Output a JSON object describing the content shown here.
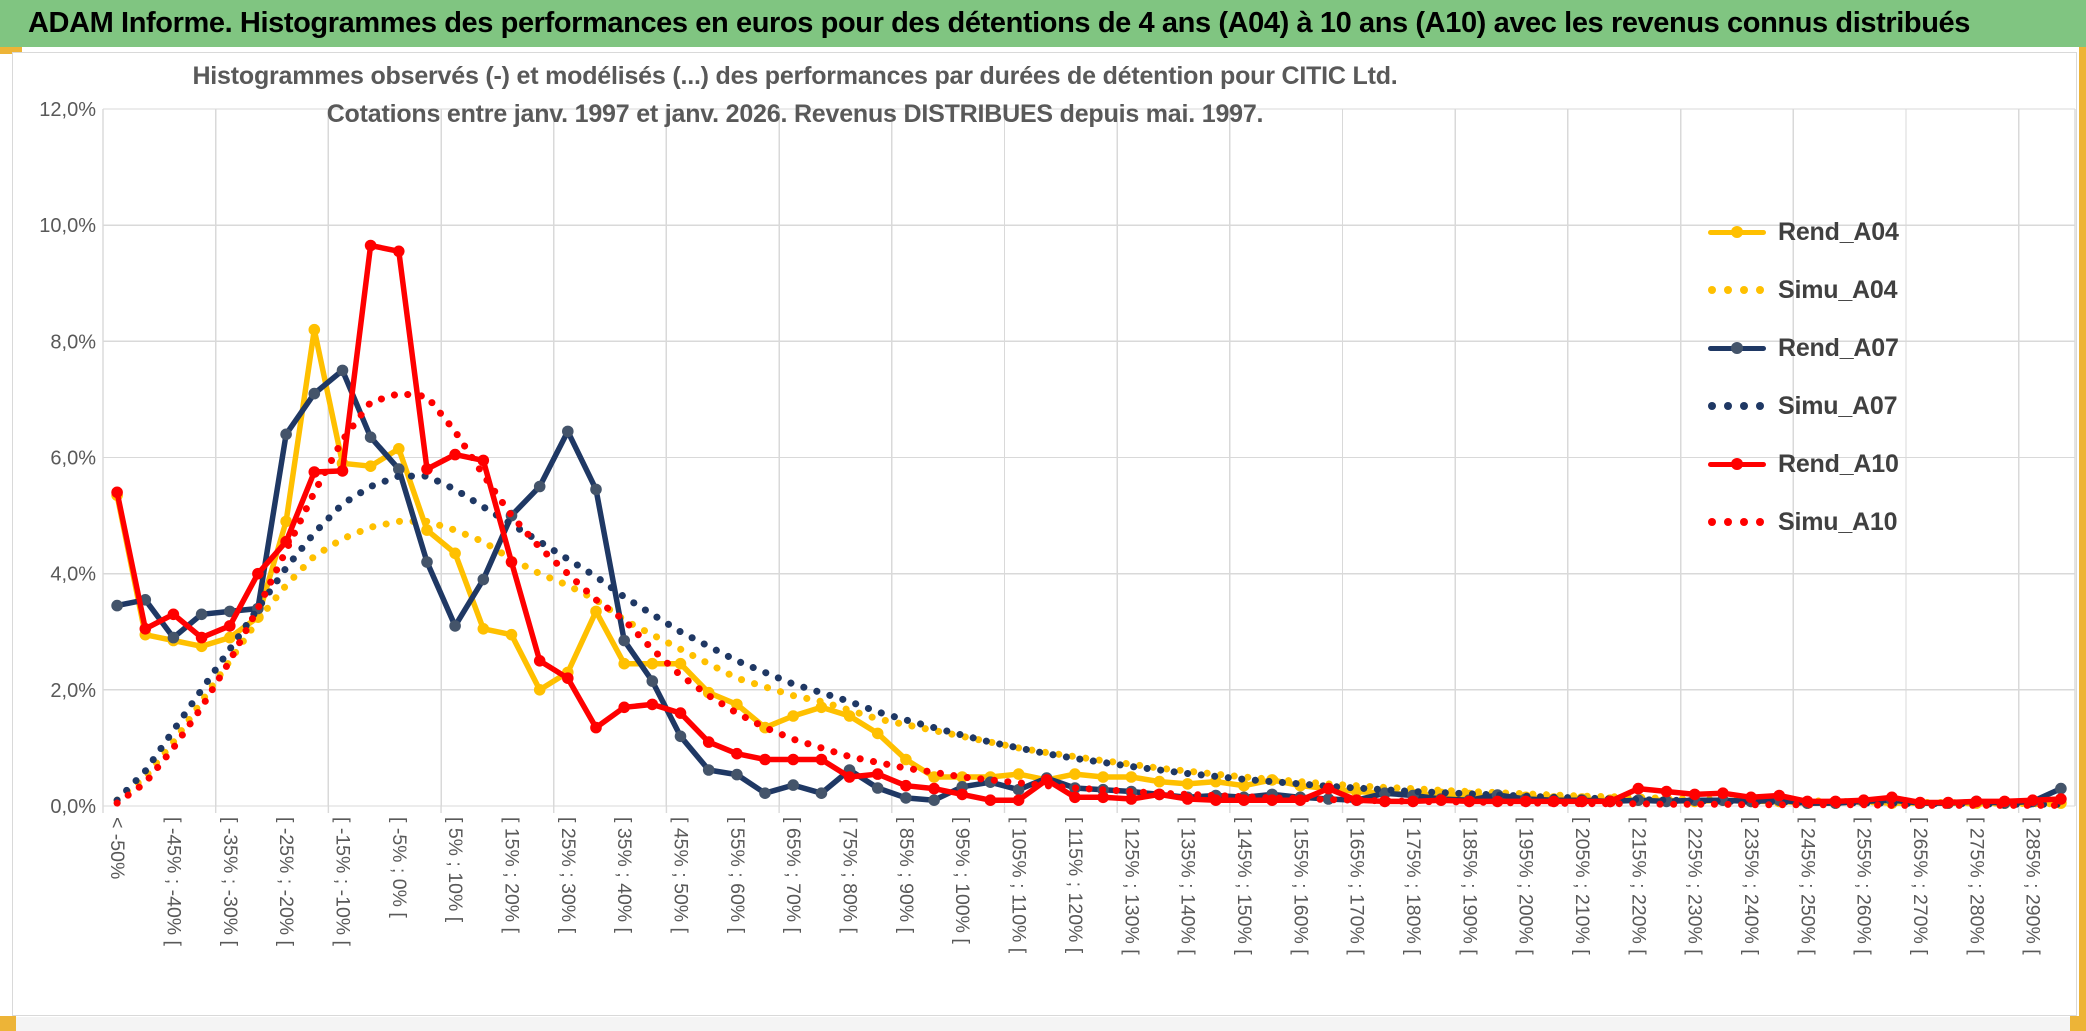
{
  "banner": {
    "title": "ADAM Informe. Histogrammes des performances en euros pour des détentions de 4 ans (A04) à 10 ans (A10) avec les revenus connus distribués"
  },
  "chart": {
    "title_line1": "Histogrammes observés (-) et modélisés (...) des performances par durées de détention pour CITIC Ltd.",
    "title_line2": "Cotations entre janv. 1997 et janv. 2026. Revenus DISTRIBUES depuis mai. 1997."
  },
  "colors": {
    "banner_green": "#80C581",
    "gold_edge": "#EDB437",
    "grid": "#D9D9D9",
    "axis_text": "#595959",
    "legend_text": "#404040",
    "gold_series": "#FFC000",
    "navy_series": "#1F3864",
    "navy_marker": "#44546A",
    "red_series": "#FF0000"
  },
  "chart_data": {
    "type": "line",
    "ylabel": "",
    "xlabel": "",
    "ylim": [
      0,
      12
    ],
    "grid": true,
    "legend_position": "right",
    "y_ticks": [
      "0,0%",
      "2,0%",
      "4,0%",
      "6,0%",
      "8,0%",
      "10,0%",
      "12,0%"
    ],
    "bins": [
      "< -50%",
      "",
      "[ -45% ; -40% [",
      "",
      "[ -35% ; -30% [",
      "",
      "[ -25% ; -20% [",
      "",
      "[ -15% ; -10% [",
      "",
      "[ -5% ; 0% [",
      "",
      "[ 5% ; 10% [",
      "",
      "[ 15% ; 20% [",
      "",
      "[ 25% ; 30% [",
      "",
      "[ 35% ; 40% [",
      "",
      "[ 45% ; 50% [",
      "",
      "[ 55% ; 60% [",
      "",
      "[ 65% ; 70% [",
      "",
      "[ 75% ; 80% [",
      "",
      "[ 85% ; 90% [",
      "",
      "[ 95% ; 100% [",
      "",
      "[ 105% ; 110% [",
      "",
      "[ 115% ; 120% [",
      "",
      "[ 125% ; 130% [",
      "",
      "[ 135% ; 140% [",
      "",
      "[ 145% ; 150% [",
      "",
      "[ 155% ; 160% [",
      "",
      "[ 165% ; 170% [",
      "",
      "[ 175% ; 180% [",
      "",
      "[ 185% ; 190% [",
      "",
      "[ 195% ; 200% [",
      "",
      "[ 205% ; 210% [",
      "",
      "[ 215% ; 220% [",
      "",
      "[ 225% ; 230% [",
      "",
      "[ 235% ; 240% [",
      "",
      "[ 245% ; 250% [",
      "",
      "[ 255% ; 260% [",
      "",
      "[ 265% ; 270% [",
      "",
      "[ 275% ; 280% [",
      "",
      "[ 285% ; 290% [",
      ""
    ],
    "series": [
      {
        "name": "Rend_A04",
        "style": "solid",
        "color": "#FFC000",
        "marker_color": "#FFC000",
        "values": [
          5.35,
          2.95,
          2.85,
          2.75,
          2.9,
          3.25,
          4.9,
          8.2,
          5.9,
          5.85,
          6.15,
          4.75,
          4.35,
          3.05,
          2.95,
          2.0,
          2.3,
          3.35,
          2.45,
          2.45,
          2.45,
          1.95,
          1.75,
          1.35,
          1.55,
          1.7,
          1.55,
          1.25,
          0.8,
          0.5,
          0.5,
          0.5,
          0.55,
          0.45,
          0.55,
          0.5,
          0.5,
          0.42,
          0.38,
          0.42,
          0.35,
          0.45,
          0.35,
          0.3,
          0.25,
          0.22,
          0.2,
          0.2,
          0.18,
          0.15,
          0.15,
          0.12,
          0.12,
          0.1,
          0.1,
          0.1,
          0.08,
          0.1,
          0.08,
          0.08,
          0.05,
          0.05,
          0.08,
          0.05,
          0.05,
          0.05,
          0.05,
          0.05,
          0.08,
          0.05
        ]
      },
      {
        "name": "Simu_A04",
        "style": "dotted",
        "color": "#FFC000",
        "marker_color": "#FFC000",
        "values": [
          0.1,
          0.5,
          1.1,
          1.8,
          2.5,
          3.2,
          3.8,
          4.3,
          4.6,
          4.8,
          4.9,
          4.9,
          4.75,
          4.55,
          4.25,
          4.0,
          3.8,
          3.55,
          3.2,
          2.95,
          2.7,
          2.45,
          2.2,
          2.05,
          1.9,
          1.8,
          1.65,
          1.5,
          1.4,
          1.3,
          1.2,
          1.1,
          1.0,
          0.92,
          0.85,
          0.78,
          0.72,
          0.65,
          0.6,
          0.55,
          0.5,
          0.46,
          0.42,
          0.38,
          0.35,
          0.32,
          0.3,
          0.27,
          0.25,
          0.23,
          0.21,
          0.19,
          0.17,
          0.16,
          0.15,
          0.13,
          0.12,
          0.11,
          0.1,
          0.09,
          0.09,
          0.08,
          0.07,
          0.07,
          0.06,
          0.06,
          0.05,
          0.05,
          0.04,
          0.04
        ]
      },
      {
        "name": "Rend_A07",
        "style": "solid",
        "color": "#1F3864",
        "marker_color": "#44546A",
        "values": [
          3.45,
          3.55,
          2.9,
          3.3,
          3.35,
          3.4,
          6.4,
          7.1,
          7.5,
          6.35,
          5.8,
          4.2,
          3.1,
          3.9,
          5.0,
          5.5,
          6.45,
          5.45,
          2.85,
          2.15,
          1.2,
          0.62,
          0.54,
          0.22,
          0.36,
          0.22,
          0.62,
          0.31,
          0.14,
          0.1,
          0.33,
          0.41,
          0.28,
          0.48,
          0.31,
          0.28,
          0.25,
          0.2,
          0.15,
          0.18,
          0.15,
          0.2,
          0.15,
          0.12,
          0.1,
          0.22,
          0.18,
          0.12,
          0.1,
          0.19,
          0.12,
          0.1,
          0.1,
          0.08,
          0.1,
          0.08,
          0.1,
          0.1,
          0.08,
          0.1,
          0.05,
          0.05,
          0.08,
          0.1,
          0.05,
          0.05,
          0.08,
          0.05,
          0.08,
          0.3
        ]
      },
      {
        "name": "Simu_A07",
        "style": "dotted",
        "color": "#1F3864",
        "marker_color": "#1F3864",
        "values": [
          0.1,
          0.6,
          1.3,
          2.0,
          2.7,
          3.4,
          4.1,
          4.7,
          5.2,
          5.5,
          5.68,
          5.68,
          5.45,
          5.15,
          4.85,
          4.55,
          4.25,
          3.95,
          3.6,
          3.3,
          3.0,
          2.75,
          2.5,
          2.3,
          2.1,
          1.95,
          1.8,
          1.62,
          1.48,
          1.35,
          1.22,
          1.1,
          1.0,
          0.9,
          0.82,
          0.75,
          0.68,
          0.62,
          0.56,
          0.51,
          0.46,
          0.42,
          0.38,
          0.34,
          0.31,
          0.28,
          0.25,
          0.23,
          0.21,
          0.19,
          0.17,
          0.15,
          0.14,
          0.12,
          0.11,
          0.1,
          0.09,
          0.08,
          0.08,
          0.07,
          0.06,
          0.06,
          0.05,
          0.05,
          0.04,
          0.04,
          0.04,
          0.03,
          0.03,
          0.03
        ]
      },
      {
        "name": "Rend_A10",
        "style": "solid",
        "color": "#FF0000",
        "marker_color": "#FF0000",
        "values": [
          5.4,
          3.05,
          3.3,
          2.9,
          3.1,
          4.0,
          4.55,
          5.75,
          5.77,
          9.65,
          9.55,
          5.8,
          6.05,
          5.95,
          4.2,
          2.5,
          2.2,
          1.35,
          1.7,
          1.75,
          1.6,
          1.1,
          0.9,
          0.8,
          0.8,
          0.8,
          0.5,
          0.55,
          0.35,
          0.3,
          0.2,
          0.1,
          0.1,
          0.45,
          0.15,
          0.15,
          0.12,
          0.2,
          0.12,
          0.1,
          0.1,
          0.1,
          0.1,
          0.3,
          0.1,
          0.08,
          0.08,
          0.1,
          0.08,
          0.08,
          0.08,
          0.08,
          0.08,
          0.08,
          0.3,
          0.25,
          0.2,
          0.22,
          0.15,
          0.18,
          0.08,
          0.08,
          0.1,
          0.15,
          0.06,
          0.06,
          0.08,
          0.08,
          0.1,
          0.12
        ]
      },
      {
        "name": "Simu_A10",
        "style": "dotted",
        "color": "#FF0000",
        "marker_color": "#FF0000",
        "values": [
          0.05,
          0.4,
          1.0,
          1.7,
          2.5,
          3.4,
          4.4,
          5.4,
          6.3,
          6.95,
          7.1,
          7.05,
          6.45,
          5.7,
          5.0,
          4.45,
          4.0,
          3.55,
          3.2,
          2.7,
          2.25,
          1.9,
          1.6,
          1.35,
          1.15,
          1.0,
          0.85,
          0.75,
          0.65,
          0.58,
          0.5,
          0.45,
          0.4,
          0.35,
          0.31,
          0.28,
          0.25,
          0.22,
          0.2,
          0.18,
          0.16,
          0.14,
          0.13,
          0.11,
          0.1,
          0.09,
          0.08,
          0.07,
          0.07,
          0.06,
          0.05,
          0.05,
          0.04,
          0.04,
          0.04,
          0.03,
          0.03,
          0.03,
          0.02,
          0.02,
          0.02,
          0.02,
          0.02,
          0.01,
          0.01,
          0.01,
          0.01,
          0.01,
          0.01,
          0.01
        ]
      }
    ]
  }
}
